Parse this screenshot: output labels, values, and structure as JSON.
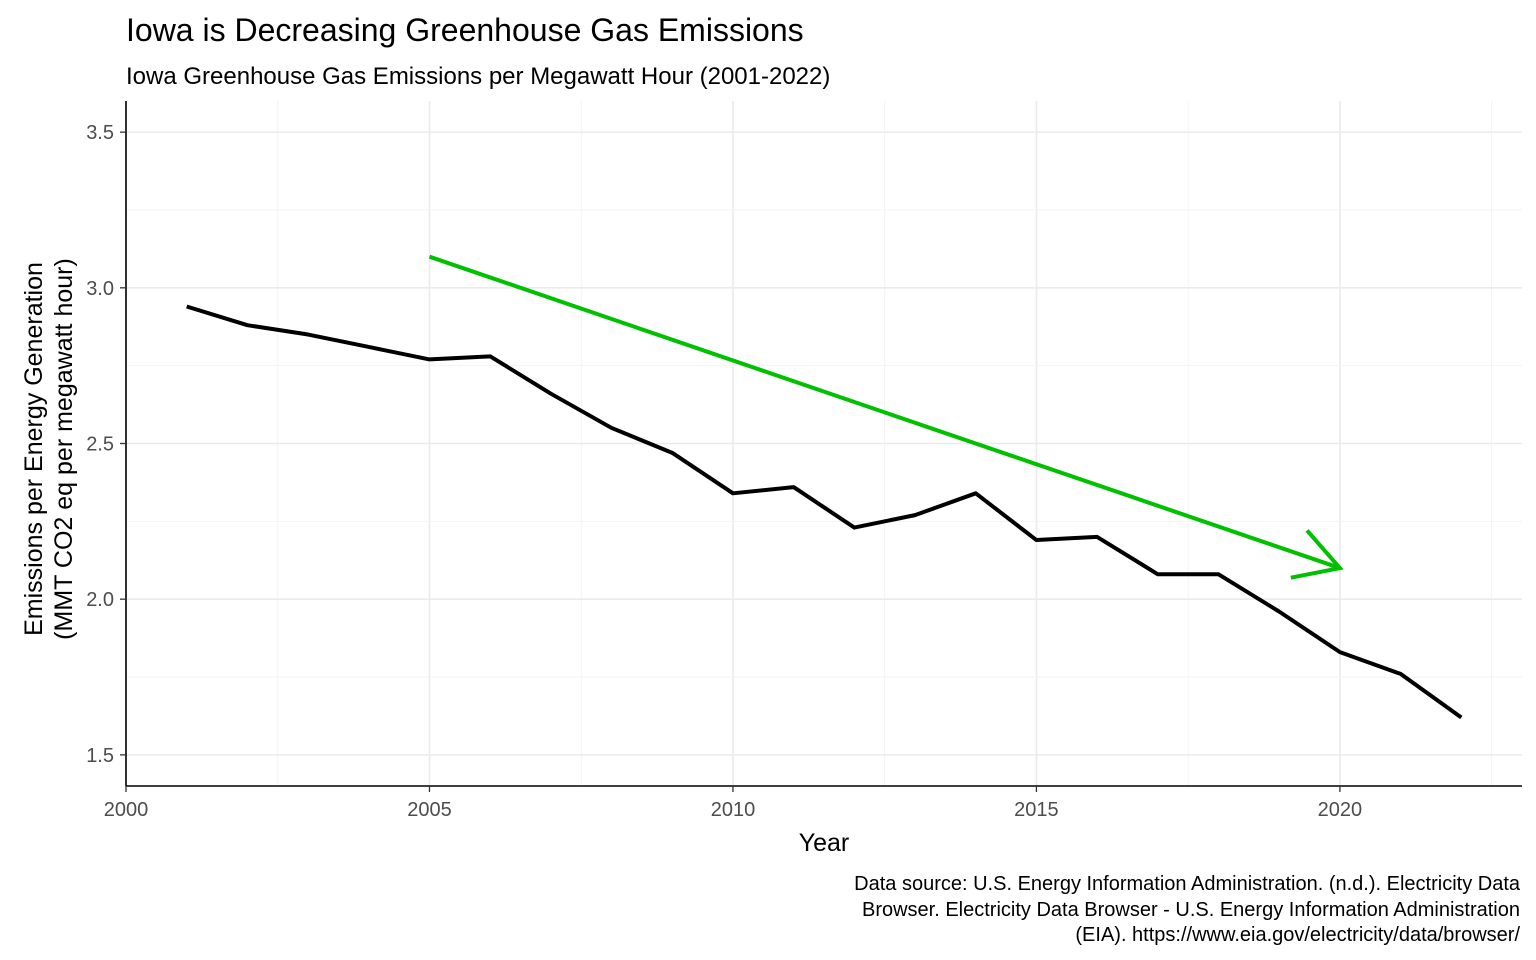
{
  "chart_data": {
    "type": "line",
    "title": "Iowa is Decreasing Greenhouse Gas Emissions",
    "subtitle": "Iowa Greenhouse Gas Emissions per Megawatt Hour (2001-2022)",
    "xlabel": "Year",
    "ylabel_lines": [
      "Emissions per Energy Generation",
      "(MMT CO2 eq per megawatt hour)"
    ],
    "caption_lines": [
      "Data source: U.S. Energy Information Administration. (n.d.). Electricity Data",
      "Browser. Electricity Data Browser - U.S. Energy Information Administration",
      "(EIA). https://www.eia.gov/electricity/data/browser/"
    ],
    "xlim": [
      2000,
      2023
    ],
    "ylim": [
      1.4,
      3.6
    ],
    "x_ticks": [
      2000,
      2005,
      2010,
      2015,
      2020
    ],
    "x_tick_labels": [
      "2000",
      "2005",
      "2010",
      "2015",
      "2020"
    ],
    "y_ticks": [
      1.5,
      2.0,
      2.5,
      3.0,
      3.5
    ],
    "y_tick_labels": [
      "1.5",
      "2.0",
      "2.5",
      "3.0",
      "3.5"
    ],
    "grid": true,
    "series": [
      {
        "color": "#000000",
        "x": [
          2001,
          2002,
          2003,
          2004,
          2005,
          2006,
          2007,
          2008,
          2009,
          2010,
          2011,
          2012,
          2013,
          2014,
          2015,
          2016,
          2017,
          2018,
          2019,
          2020,
          2021,
          2022
        ],
        "y": [
          2.94,
          2.88,
          2.85,
          2.81,
          2.77,
          2.78,
          2.66,
          2.55,
          2.47,
          2.34,
          2.36,
          2.23,
          2.27,
          2.34,
          2.19,
          2.2,
          2.08,
          2.08,
          1.96,
          1.83,
          1.76,
          1.62
        ]
      }
    ],
    "annotations": [
      {
        "type": "arrow",
        "color": "#00c000",
        "from": [
          2005,
          3.1
        ],
        "to": [
          2020,
          2.1
        ]
      }
    ]
  }
}
